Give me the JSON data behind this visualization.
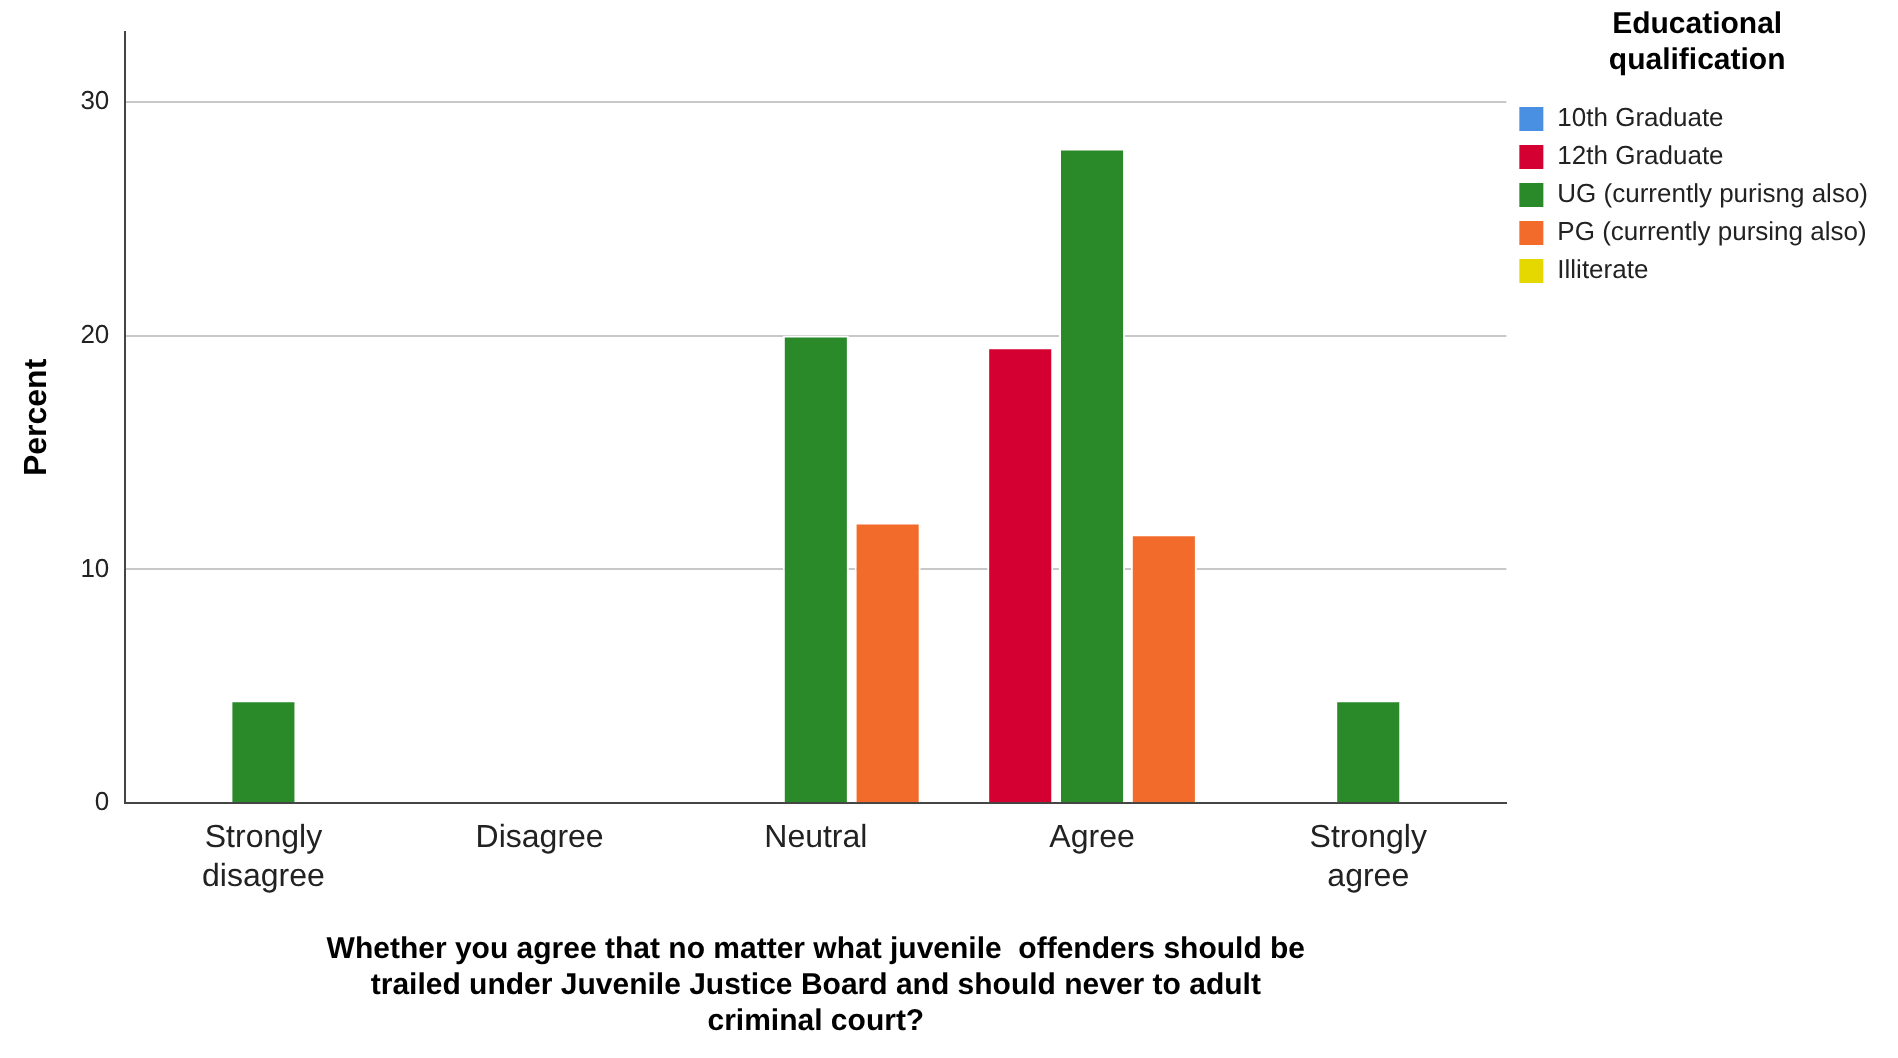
{
  "chart_data": {
    "type": "bar",
    "xlabel": "Whether you agree that no matter what juvenile  offenders should be\ntrailed under Juvenile Justice Board and should never to adult\ncriminal court?",
    "ylabel": "Percent",
    "legend_title": "Educational\nqualification",
    "categories": [
      "Strongly disagree",
      "Disagree",
      "Neutral",
      "Agree",
      "Strongly agree"
    ],
    "series": [
      {
        "name": "10th Graduate",
        "color": "#4a90e2",
        "values": [
          null,
          null,
          null,
          null,
          null
        ]
      },
      {
        "name": "12th Graduate",
        "color": "#d50032",
        "values": [
          null,
          null,
          null,
          19.5,
          null
        ]
      },
      {
        "name": "UG (currently purisng also)",
        "color": "#2a8a2a",
        "values": [
          4.4,
          null,
          20,
          28,
          4.4
        ]
      },
      {
        "name": "PG (currently pursing also)",
        "color": "#f26b2a",
        "values": [
          null,
          null,
          12,
          11.5,
          null
        ]
      },
      {
        "name": "Illiterate",
        "color": "#e5d800",
        "values": [
          null,
          null,
          null,
          null,
          null
        ]
      }
    ],
    "ylim": [
      0,
      33
    ],
    "yticks": [
      0,
      10,
      20,
      30
    ],
    "grid": "y",
    "legend": "top right"
  }
}
